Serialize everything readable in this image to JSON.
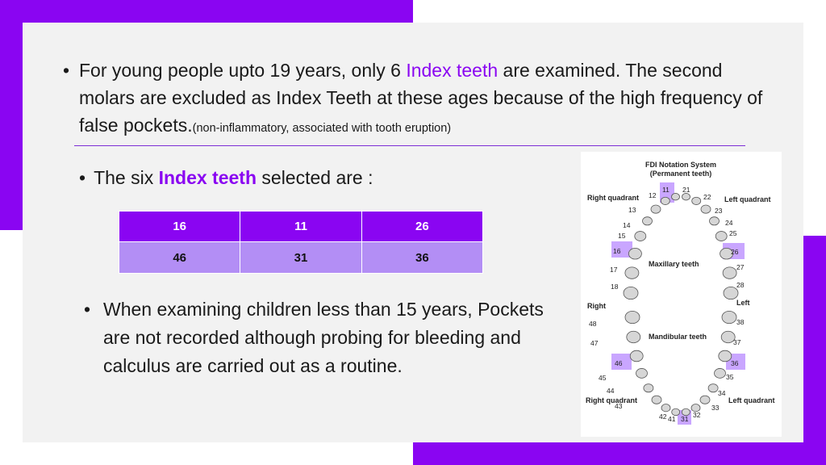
{
  "colors": {
    "accent": "#8a05f2",
    "row2": "#b38ef5",
    "panel": "#f2f2f2"
  },
  "bullet1": {
    "pre": "For young people upto 19 years, only 6 ",
    "highlight": "Index teeth",
    "post": " are examined. The second molars are excluded as Index Teeth at these ages because of the high frequency of false pockets.",
    "note": "(non-inflammatory, associated with tooth eruption)"
  },
  "bullet2": {
    "pre": "The six ",
    "highlight": "Index teeth",
    "post": " selected are  :"
  },
  "index_table": {
    "rows": [
      [
        "16",
        "11",
        "26"
      ],
      [
        "46",
        "31",
        "36"
      ]
    ]
  },
  "bullet3": {
    "text": "When examining children less than 15 years, Pockets are not recorded although probing for bleeding and calculus are carried out as a routine."
  },
  "figure": {
    "title_1": "FDI Notation System",
    "title_2": "(Permanent teeth)",
    "right_quadrant_upper": "Right quadrant",
    "left_quadrant_upper": "Left quadrant",
    "maxillary": "Maxillary teeth",
    "mandibular": "Mandibular teeth",
    "right": "Right",
    "left": "Left",
    "right_quadrant_lower": "Right quadrant",
    "left_quadrant_lower": "Left quadrant",
    "upper_right_numbers": [
      "11",
      "12",
      "13",
      "14",
      "15",
      "16",
      "17",
      "18"
    ],
    "upper_left_numbers": [
      "21",
      "22",
      "23",
      "24",
      "25",
      "26",
      "27",
      "28"
    ],
    "lower_left_numbers": [
      "31",
      "32",
      "33",
      "34",
      "35",
      "36",
      "37",
      "38"
    ],
    "lower_right_numbers": [
      "41",
      "42",
      "43",
      "44",
      "45",
      "46",
      "47",
      "48"
    ]
  }
}
